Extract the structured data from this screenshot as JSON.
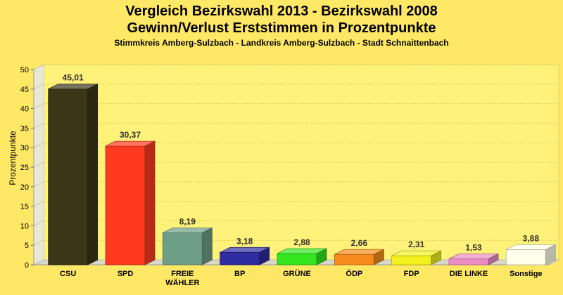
{
  "title": "Vergleich Bezirkswahl 2013 - Bezirkswahl 2008",
  "subtitle": "Gewinn/Verlust Erststimmen in Prozentpunkte",
  "caption": "Stimmkreis Amberg-Sulzbach - Landkreis Amberg-Sulzbach - Stadt Schnaittenbach",
  "chart_data": {
    "type": "bar",
    "title": "Vergleich Bezirkswahl 2013 - Bezirkswahl 2008",
    "subtitle": "Gewinn/Verlust Erststimmen in Prozentpunkte",
    "xlabel": "",
    "ylabel": "Prozentpunkte",
    "ylim": [
      0,
      50
    ],
    "yticks": [
      0,
      5,
      10,
      15,
      20,
      25,
      30,
      35,
      40,
      45,
      50
    ],
    "grid": true,
    "categories": [
      [
        "CSU"
      ],
      [
        "SPD"
      ],
      [
        "FREIE",
        "WÄHLER"
      ],
      [
        "BP"
      ],
      [
        "GRÜNE"
      ],
      [
        "ÖDP"
      ],
      [
        "FDP"
      ],
      [
        "DIE LINKE"
      ],
      [
        "Sonstige"
      ]
    ],
    "values": [
      45.01,
      30.37,
      8.19,
      3.18,
      2.88,
      2.66,
      2.31,
      1.53,
      3.88
    ],
    "value_labels": [
      "45,01",
      "30,37",
      "8,19",
      "3,18",
      "2,88",
      "2,66",
      "2,31",
      "1,53",
      "3,88"
    ],
    "colors": [
      "#3b3618",
      "#ff3a1e",
      "#6f9e86",
      "#2e2ca0",
      "#33e61e",
      "#f78c1c",
      "#f2f21e",
      "#ec8cc2",
      "#ffffea"
    ]
  }
}
